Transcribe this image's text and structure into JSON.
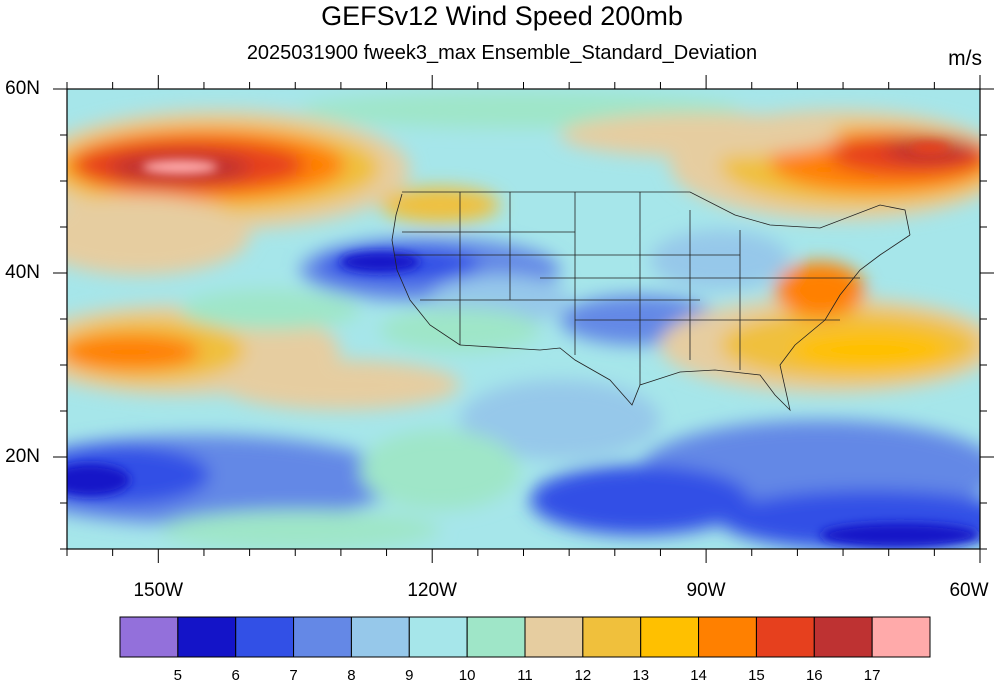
{
  "title": "GEFSv12 Wind Speed 200mb",
  "subtitle": "2025031900 fweek3_max Ensemble_Standard_Deviation",
  "units": "m/s",
  "map": {
    "extent": {
      "lon": [
        -160,
        -60
      ],
      "lat": [
        10,
        60
      ]
    },
    "lat_ticks": [
      {
        "value": 60,
        "label": "60N"
      },
      {
        "value": 40,
        "label": "40N"
      },
      {
        "value": 20,
        "label": "20N"
      }
    ],
    "lon_ticks": [
      {
        "value": -150,
        "label": "150W"
      },
      {
        "value": -120,
        "label": "120W"
      },
      {
        "value": -90,
        "label": "90W"
      },
      {
        "value": -60,
        "label": "60W"
      }
    ],
    "ocean_color": "#a6e6ea"
  },
  "colorbar": {
    "colors": [
      "#9370db",
      "#1414c8",
      "#3250e6",
      "#6488e6",
      "#96c8ea",
      "#a6e6ea",
      "#9fe6c8",
      "#e6cda0",
      "#f0c03c",
      "#ffc000",
      "#ff8000",
      "#e6401e",
      "#be3232",
      "#ffaaaa"
    ],
    "labels": [
      "5",
      "6",
      "7",
      "8",
      "9",
      "10",
      "11",
      "12",
      "13",
      "14",
      "15",
      "16",
      "17"
    ]
  }
}
